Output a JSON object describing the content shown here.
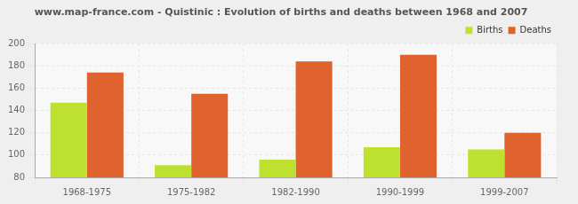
{
  "chart_data": {
    "type": "bar",
    "title": "www.map-france.com - Quistinic : Evolution of births and deaths between 1968 and 2007",
    "categories": [
      "1968-1975",
      "1975-1982",
      "1982-1990",
      "1990-1999",
      "1999-2007"
    ],
    "series": [
      {
        "name": "Births",
        "color": "#bee12f",
        "values": [
          147,
          91,
          96,
          107,
          105
        ]
      },
      {
        "name": "Deaths",
        "color": "#e0622e",
        "values": [
          174,
          155,
          184,
          190,
          120
        ]
      }
    ],
    "ylim": [
      80,
      200
    ],
    "yticks": [
      80,
      100,
      120,
      140,
      160,
      180,
      200
    ],
    "grid": true,
    "legend": "top-right"
  }
}
